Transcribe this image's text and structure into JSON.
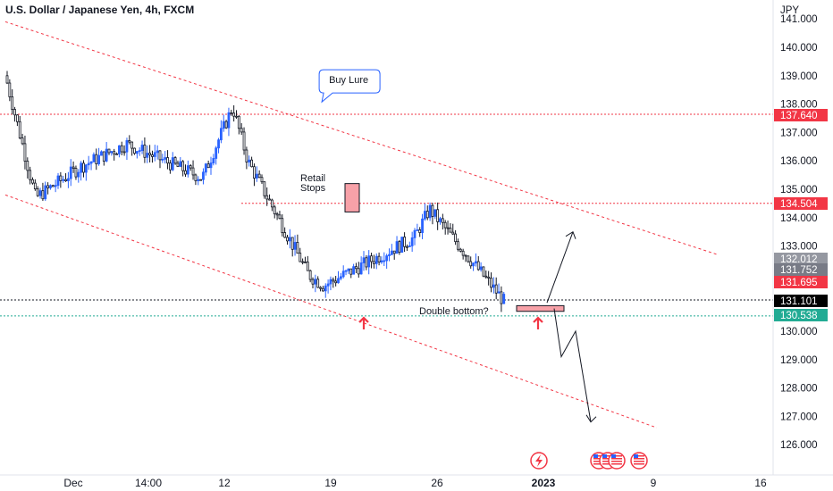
{
  "title": "U.S. Dollar / Japanese Yen, 4h, FXCM",
  "currency": "JPY",
  "chart_data": {
    "type": "candlestick",
    "symbol": "USDJPY",
    "timeframe": "4h",
    "y_axis": {
      "ticks": [
        126,
        127,
        128,
        129,
        130,
        131,
        132,
        133,
        134,
        135,
        136,
        137,
        138,
        139,
        140,
        141
      ],
      "tick_labels": [
        "126.000",
        "127.000",
        "128.000",
        "129.000",
        "130.000",
        "131.000",
        "132.000",
        "133.000",
        "134.000",
        "135.000",
        "136.000",
        "137.000",
        "138.000",
        "139.000",
        "140.000",
        "141.000"
      ],
      "range": [
        125.4,
        141.3
      ]
    },
    "x_axis": {
      "tick_labels": [
        "Dec",
        "14:00",
        "12",
        "19",
        "26",
        "2023",
        "9",
        "16"
      ],
      "bold_label": "2023",
      "range": [
        "2022-11-30",
        "2023-01-18"
      ]
    },
    "price_badges": [
      {
        "label": "137.640",
        "value": 137.64,
        "color": "#f23645"
      },
      {
        "label": "134.504",
        "value": 134.504,
        "color": "#f23645"
      },
      {
        "label": "132.012",
        "value": 132.012,
        "color": "#9598a1"
      },
      {
        "label": "131.752",
        "value": 131.752,
        "color": "#787b86"
      },
      {
        "label": "131.695",
        "value": 131.695,
        "color": "#f23645"
      },
      {
        "label": "131.101",
        "value": 131.101,
        "color": "#000000"
      },
      {
        "label": "130.538",
        "value": 130.538,
        "color": "#22ab94"
      }
    ],
    "horizontal_levels": [
      {
        "value": 137.64,
        "style": "dotted",
        "color": "#f23645"
      },
      {
        "value": 134.504,
        "style": "dotted",
        "color": "#f23645"
      },
      {
        "value": 131.101,
        "style": "dotted",
        "color": "#131722"
      },
      {
        "value": 130.538,
        "style": "dotted",
        "color": "#22ab94"
      }
    ],
    "channel_lines": [
      {
        "name": "upper",
        "from": {
          "date": "2022-11-30",
          "price": 140.9
        },
        "to": {
          "date": "2023-01-16",
          "price": 132.7
        }
      },
      {
        "name": "lower",
        "from": {
          "date": "2022-11-30",
          "price": 134.8
        },
        "to": {
          "date": "2023-01-12",
          "price": 126.6
        }
      }
    ],
    "annotations": [
      {
        "text": "Buy Lure",
        "kind": "callout",
        "date": "2022-12-18",
        "price": 138.8
      },
      {
        "text": "Retail",
        "kind": "label",
        "date": "2022-12-18",
        "price": 135.4
      },
      {
        "text": "Stops",
        "kind": "label",
        "date": "2022-12-18",
        "price": 135.0
      },
      {
        "text": "Double bottom?",
        "kind": "label",
        "date": "2022-12-28",
        "price": 130.7
      }
    ],
    "up_color": "#2962ff",
    "down_color": "#131722",
    "ohlc_points": [
      {
        "date": "2022-11-30",
        "close": 139.0
      },
      {
        "date": "2022-12-02",
        "close": 134.7
      },
      {
        "date": "2022-12-05",
        "close": 135.8
      },
      {
        "date": "2022-12-08",
        "close": 136.6
      },
      {
        "date": "2022-12-13",
        "close": 135.4
      },
      {
        "date": "2022-12-15",
        "close": 137.9
      },
      {
        "date": "2022-12-16",
        "close": 136.0
      },
      {
        "date": "2022-12-20",
        "close": 132.0
      },
      {
        "date": "2022-12-21",
        "close": 131.6
      },
      {
        "date": "2022-12-27",
        "close": 133.3
      },
      {
        "date": "2022-12-28",
        "close": 134.3
      },
      {
        "date": "2023-01-02",
        "close": 131.0
      }
    ]
  }
}
